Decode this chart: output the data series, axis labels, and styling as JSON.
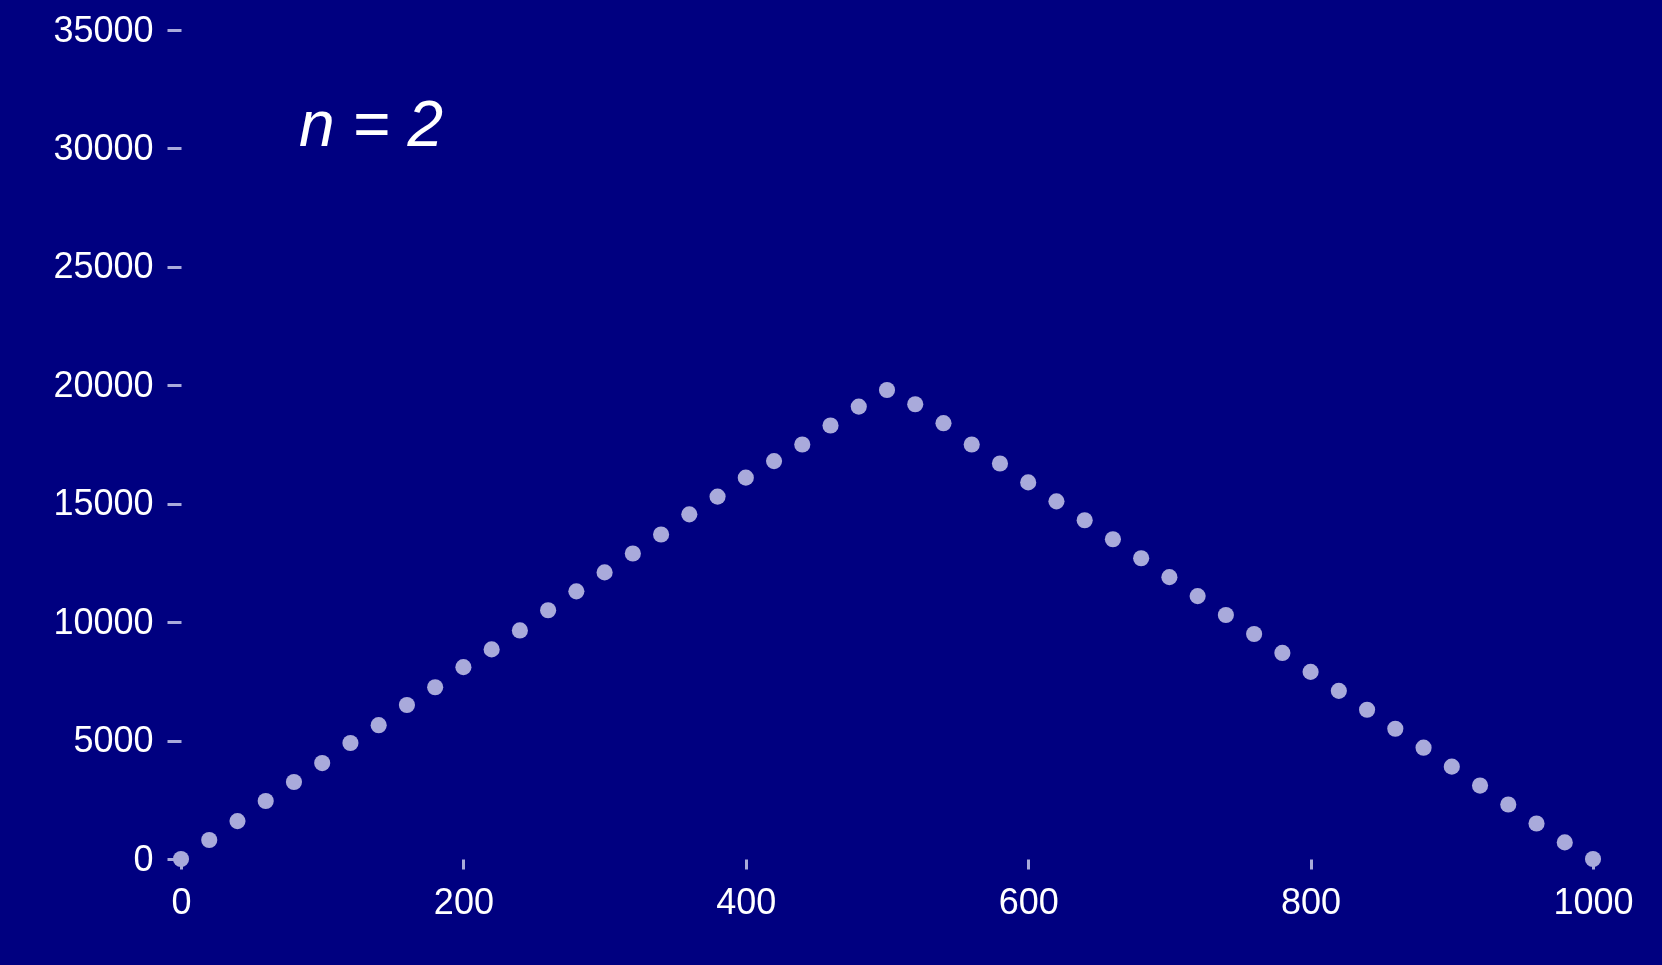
{
  "chart_data": {
    "type": "scatter",
    "annotations": [
      "n = 2"
    ],
    "x": [
      0,
      20,
      40,
      60,
      80,
      100,
      120,
      140,
      160,
      180,
      200,
      220,
      240,
      260,
      280,
      300,
      320,
      340,
      360,
      380,
      400,
      420,
      440,
      460,
      480,
      500,
      520,
      540,
      560,
      580,
      600,
      620,
      640,
      660,
      680,
      700,
      720,
      740,
      760,
      780,
      800,
      820,
      840,
      860,
      880,
      900,
      920,
      940,
      960,
      980,
      1000
    ],
    "series": [
      {
        "color": "#a9aadb",
        "values": [
          0,
          800,
          1600,
          2450,
          3250,
          4050,
          4900,
          5650,
          6500,
          7250,
          8100,
          8850,
          9650,
          10500,
          11300,
          12100,
          12900,
          13700,
          14550,
          15300,
          16100,
          16800,
          17500,
          18300,
          19100,
          19800,
          19200,
          18400,
          17500,
          16700,
          15900,
          15100,
          14300,
          13500,
          12700,
          11900,
          11100,
          10300,
          9500,
          8700,
          7900,
          7100,
          6300,
          5500,
          4700,
          3900,
          3100,
          2300,
          1500,
          700,
          0
        ]
      }
    ],
    "xlim": [
      0,
      1000
    ],
    "xticks": [
      0,
      200,
      400,
      600,
      800,
      1000
    ],
    "ylim": [
      0,
      35000
    ],
    "yticks": [
      0,
      5000,
      10000,
      15000,
      20000,
      25000,
      30000,
      35000
    ],
    "grid": false,
    "marker": "circle"
  }
}
